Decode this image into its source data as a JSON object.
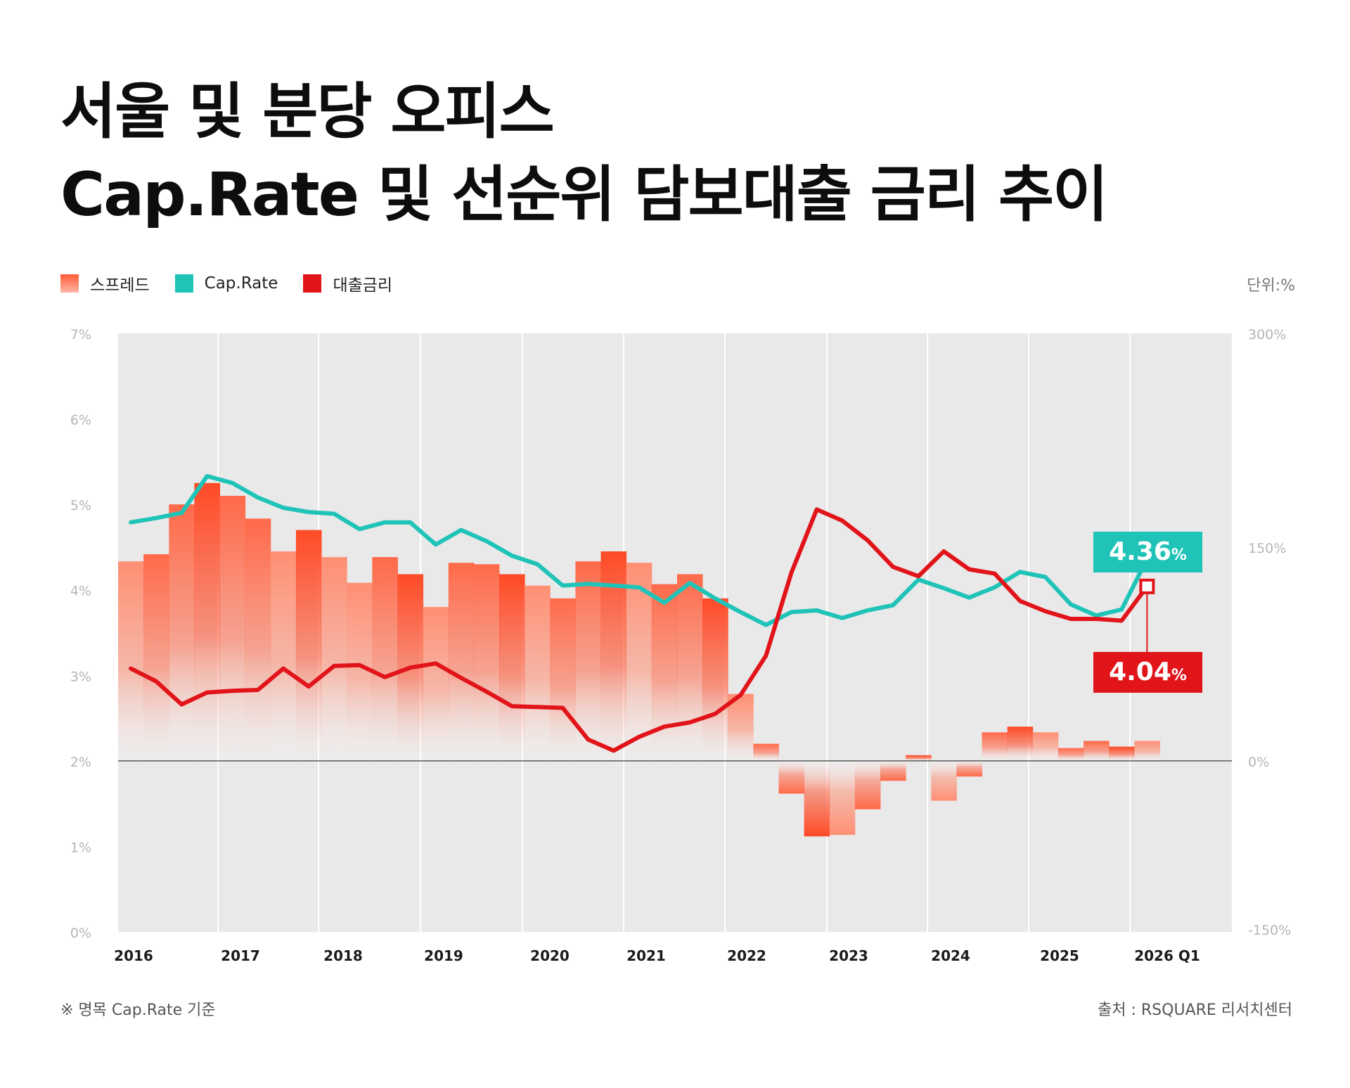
{
  "title": {
    "line1": "서울 및 분당 오피스",
    "line2": "Cap.Rate 및 선순위 담보대출 금리 추이"
  },
  "legend": {
    "spread": "스프레드",
    "cap_rate": "Cap.Rate",
    "loan_rate": "대출금리"
  },
  "unit": "단위:%",
  "footnote": "※ 명목 Cap.Rate 기준",
  "source": "출처 : RSQUARE 리서치센터",
  "callouts": {
    "cap_rate_value": "4.36",
    "loan_rate_value": "4.04",
    "percent": "%"
  },
  "colors": {
    "cap_rate": "#1fc3b8",
    "loan_rate": "#e1141a",
    "spread_top": "#ff4a26",
    "spread_light": "#ff8f74",
    "plot_bg": "#e9e9e9"
  },
  "chart_data": {
    "type": "bar+line",
    "title": "서울 및 분당 오피스 Cap.Rate 및 선순위 담보대출 금리 추이",
    "x_tick_labels": [
      "2016",
      "2017",
      "2018",
      "2019",
      "2020",
      "2021",
      "2022",
      "2023",
      "2024",
      "2025",
      "2026 Q1"
    ],
    "y_left": {
      "ticks": [
        "0%",
        "1%",
        "2%",
        "3%",
        "4%",
        "5%",
        "6%",
        "7%"
      ],
      "ylim": [
        0,
        7
      ]
    },
    "y_right": {
      "ticks": [
        "-150%",
        "0%",
        "150%",
        "300%"
      ],
      "ylim": [
        -150,
        300
      ]
    },
    "grid": true,
    "legend_position": "top-left",
    "series": [
      {
        "name": "스프레드",
        "type": "bar",
        "axis": "right",
        "values": [
          140,
          145,
          180,
          195,
          186,
          170,
          147,
          162,
          143,
          125,
          143,
          131,
          108,
          139,
          138,
          131,
          123,
          114,
          140,
          147,
          139,
          124,
          131,
          114,
          47,
          12,
          -23,
          -53,
          -52,
          -34,
          -14,
          4,
          -28,
          -11,
          20,
          24,
          20,
          9,
          14,
          10,
          14
        ],
        "tones": [
          0,
          1,
          1,
          2,
          1,
          1,
          0,
          2,
          0,
          0,
          1,
          2,
          0,
          1,
          1,
          2,
          0,
          1,
          1,
          2,
          0,
          1,
          1,
          2,
          0,
          1,
          1,
          2,
          0,
          1,
          1,
          2,
          0,
          1,
          1,
          2,
          0,
          1,
          1,
          2,
          0
        ]
      },
      {
        "name": "Cap.Rate",
        "type": "line",
        "axis": "left",
        "values": [
          4.79,
          4.84,
          4.9,
          5.33,
          5.25,
          5.08,
          4.96,
          4.91,
          4.89,
          4.71,
          4.79,
          4.79,
          4.53,
          4.7,
          4.57,
          4.4,
          4.3,
          4.05,
          4.07,
          4.05,
          4.03,
          3.85,
          4.08,
          3.9,
          3.74,
          3.59,
          3.74,
          3.76,
          3.67,
          3.76,
          3.82,
          4.12,
          4.02,
          3.91,
          4.03,
          4.21,
          4.15,
          3.83,
          3.7,
          3.77,
          4.36
        ]
      },
      {
        "name": "대출금리",
        "type": "line",
        "axis": "left",
        "values": [
          3.08,
          2.93,
          2.66,
          2.8,
          2.82,
          2.83,
          3.08,
          2.87,
          3.11,
          3.12,
          2.98,
          3.09,
          3.14,
          2.97,
          2.81,
          2.64,
          2.63,
          2.62,
          2.25,
          2.12,
          2.28,
          2.4,
          2.45,
          2.55,
          2.77,
          3.23,
          4.2,
          4.94,
          4.81,
          4.58,
          4.27,
          4.16,
          4.45,
          4.24,
          4.19,
          3.87,
          3.75,
          3.66,
          3.66,
          3.64,
          4.04
        ]
      }
    ]
  }
}
